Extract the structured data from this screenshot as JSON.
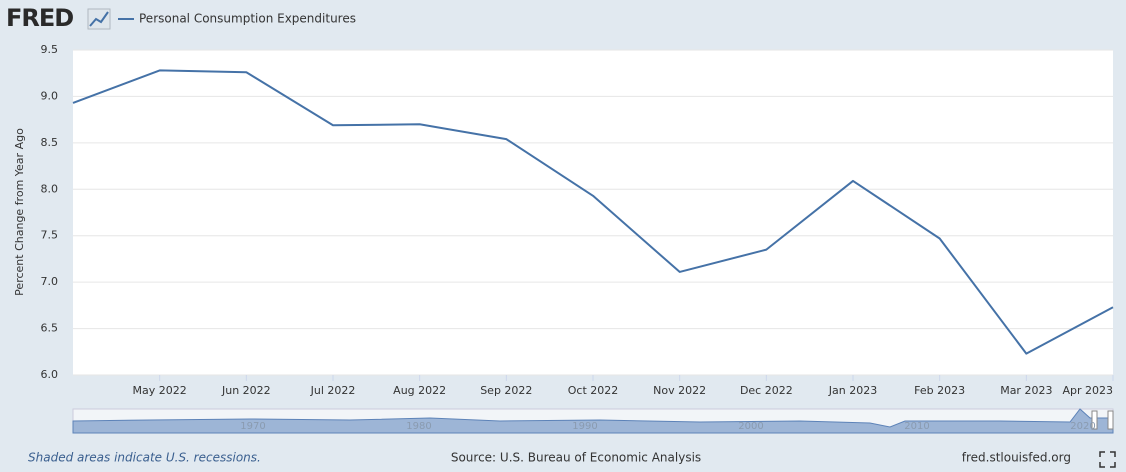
{
  "logo": "FRED",
  "notes": {
    "recessions": "Shaded areas indicate U.S. recessions.",
    "source": "Source: U.S. Bureau of Economic Analysis",
    "site": "fred.stlouisfed.org"
  },
  "navigator_labels": [
    "1970",
    "1980",
    "1990",
    "2000",
    "2010",
    "2020"
  ],
  "chart_data": {
    "type": "line",
    "ylabel": "Percent Change from Year Ago",
    "categories": [
      null,
      "May 2022",
      "Jun 2022",
      "Jul 2022",
      "Aug 2022",
      "Sep 2022",
      "Oct 2022",
      "Nov 2022",
      "Dec 2022",
      "Jan 2023",
      "Feb 2023",
      "Mar 2023",
      "Apr 2023"
    ],
    "series": [
      {
        "name": "Personal Consumption Expenditures",
        "color": "#4572a7",
        "values": [
          8.93,
          9.28,
          9.26,
          8.69,
          8.7,
          8.54,
          7.93,
          7.11,
          7.35,
          8.09,
          7.47,
          6.23,
          6.73
        ]
      }
    ],
    "ylim": [
      6.0,
      9.5
    ],
    "yticks": [
      {
        "value": 6,
        "label": "6.0"
      },
      6.5,
      {
        "value": 7,
        "label": "7.0"
      },
      7.5,
      {
        "value": 8,
        "label": "8.0"
      },
      8.5,
      {
        "value": 9,
        "label": "9.0"
      },
      9.5
    ],
    "grid": true
  }
}
